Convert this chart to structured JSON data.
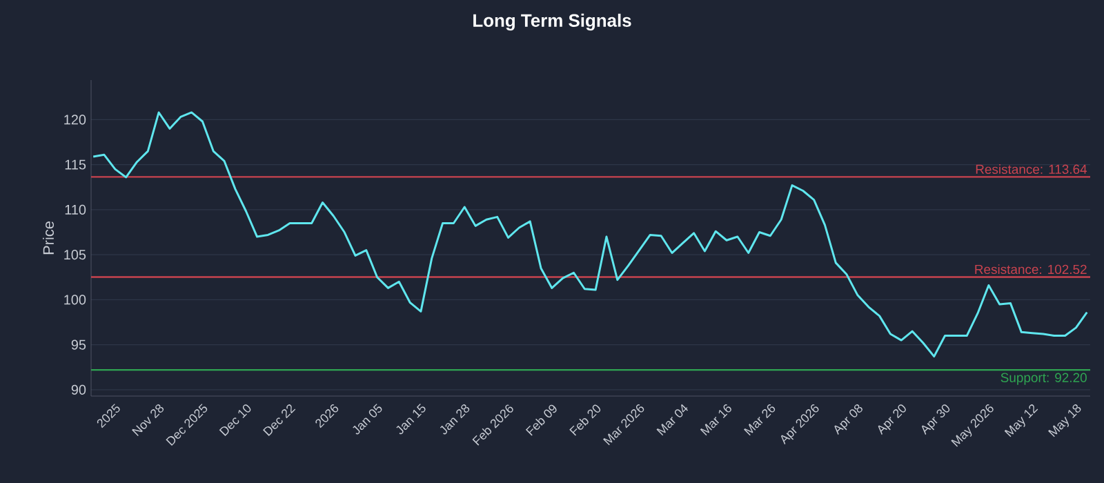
{
  "chart_data": {
    "type": "line",
    "title": "Long Term Signals",
    "ylabel": "Price",
    "categories": [
      null,
      null,
      "2025",
      null,
      null,
      null,
      "Nov 28",
      null,
      null,
      null,
      "Dec 2025",
      null,
      null,
      null,
      "Dec 10",
      null,
      null,
      null,
      "Dec 22",
      null,
      null,
      null,
      "2026",
      null,
      null,
      null,
      "Jan 05",
      null,
      null,
      null,
      "Jan 15",
      null,
      null,
      null,
      "Jan 28",
      null,
      null,
      null,
      "Feb 2026",
      null,
      null,
      null,
      "Feb 09",
      null,
      null,
      null,
      "Feb 20",
      null,
      null,
      null,
      "Mar 2026",
      null,
      null,
      null,
      "Mar 04",
      null,
      null,
      null,
      "Mar 16",
      null,
      null,
      null,
      "Mar 26",
      null,
      null,
      null,
      "Apr 2026",
      null,
      null,
      null,
      "Apr 08",
      null,
      null,
      null,
      "Apr 20",
      null,
      null,
      null,
      "Apr 30",
      null,
      null,
      null,
      "May 2026",
      null,
      null,
      null,
      "May 12",
      null,
      null,
      null,
      "May 18",
      null
    ],
    "series": [
      {
        "color": "#5fe6ee",
        "values": [
          115.9,
          116.1,
          114.5,
          113.6,
          115.3,
          116.5,
          120.8,
          119,
          120.3,
          120.8,
          119.8,
          116.5,
          115.4,
          112.3,
          109.8,
          107,
          107.2,
          107.7,
          108.5,
          108.5,
          108.5,
          110.8,
          109.3,
          107.5,
          104.9,
          105.5,
          102.5,
          101.3,
          102,
          99.7,
          98.7,
          104.6,
          108.5,
          108.5,
          110.3,
          108.2,
          108.9,
          109.2,
          106.9,
          108,
          108.7,
          103.5,
          101.3,
          102.4,
          103,
          101.2,
          101.1,
          107,
          102.2,
          103.8,
          105.5,
          107.2,
          107.1,
          105.2,
          106.3,
          107.4,
          105.4,
          107.6,
          106.6,
          107,
          105.2,
          107.5,
          107.1,
          108.9,
          112.7,
          112.1,
          111.1,
          108.3,
          104.1,
          102.8,
          100.5,
          99.2,
          98.2,
          96.2,
          95.5,
          96.5,
          95.2,
          93.7,
          96,
          96,
          96,
          98.5,
          101.6,
          99.5,
          99.6,
          96.4,
          96.3,
          96.2,
          96,
          96,
          96.9,
          98.6
        ]
      }
    ],
    "ylim": [
      89.3,
      124.4
    ],
    "yticks": [
      90,
      95,
      100,
      105,
      110,
      115,
      120
    ],
    "grid": "y",
    "ref_lines": [
      {
        "axis": "y",
        "value": 113.64,
        "label": "Resistance: 113.64",
        "color": "#c9434f"
      },
      {
        "axis": "y",
        "value": 102.52,
        "label": "Resistance: 102.52",
        "color": "#c9434f"
      },
      {
        "axis": "y",
        "value": 92.2,
        "label": "Support: 92.20",
        "color": "#2fa552"
      }
    ]
  }
}
